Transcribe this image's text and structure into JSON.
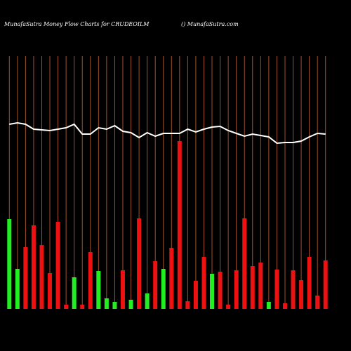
{
  "chart_data": {
    "type": "bar",
    "title": "MunafaSutra  Money Flow  Charts for CRUDEOILM",
    "subtitle": "() MunafaSutra.com",
    "categories": [
      null,
      null,
      null,
      null,
      null,
      null,
      null,
      null,
      null,
      null,
      null,
      null,
      null,
      null,
      null,
      null,
      null,
      null,
      null,
      null,
      null,
      null,
      null,
      null,
      null,
      null,
      null,
      null,
      null,
      null,
      null,
      null,
      null,
      null,
      null,
      null,
      null,
      null,
      null,
      null
    ],
    "values": [
      128,
      57,
      88,
      119,
      91,
      51,
      124,
      6,
      45,
      6,
      81,
      54,
      15,
      10,
      55,
      13,
      129,
      22,
      68,
      57,
      87,
      239,
      11,
      40,
      74,
      50,
      53,
      6,
      55,
      129,
      61,
      66,
      10,
      56,
      8,
      55,
      41,
      74,
      19,
      69
    ],
    "bar_colors": [
      "#22ee22",
      "#22ee22",
      "#ee1111",
      "#ee1111",
      "#ee1111",
      "#ee1111",
      "#ee1111",
      "#ee1111",
      "#22ee22",
      "#ee1111",
      "#ee1111",
      "#22ee22",
      "#22ee22",
      "#22ee22",
      "#ee1111",
      "#22ee22",
      "#ee1111",
      "#22ee22",
      "#ee1111",
      "#22ee22",
      "#ee1111",
      "#ee1111",
      "#ee1111",
      "#ee1111",
      "#ee1111",
      "#22ee22",
      "#ee1111",
      "#ee1111",
      "#ee1111",
      "#ee1111",
      "#ee1111",
      "#ee1111",
      "#22ee22",
      "#ee1111",
      "#ee1111",
      "#ee1111",
      "#ee1111",
      "#ee1111",
      "#ee1111",
      "#ee1111"
    ],
    "line_values": [
      263,
      265,
      263,
      256,
      255,
      254,
      256,
      258,
      263,
      249,
      249,
      258,
      256,
      261,
      253,
      251,
      244,
      251,
      246,
      250,
      250,
      250,
      256,
      252,
      256,
      259,
      260,
      254,
      250,
      246,
      249,
      247,
      245,
      236,
      237,
      237,
      239,
      245,
      250,
      249
    ],
    "line_color": "#ffffff",
    "grid_color": "#a0522d",
    "ylim": [
      0,
      360
    ]
  }
}
